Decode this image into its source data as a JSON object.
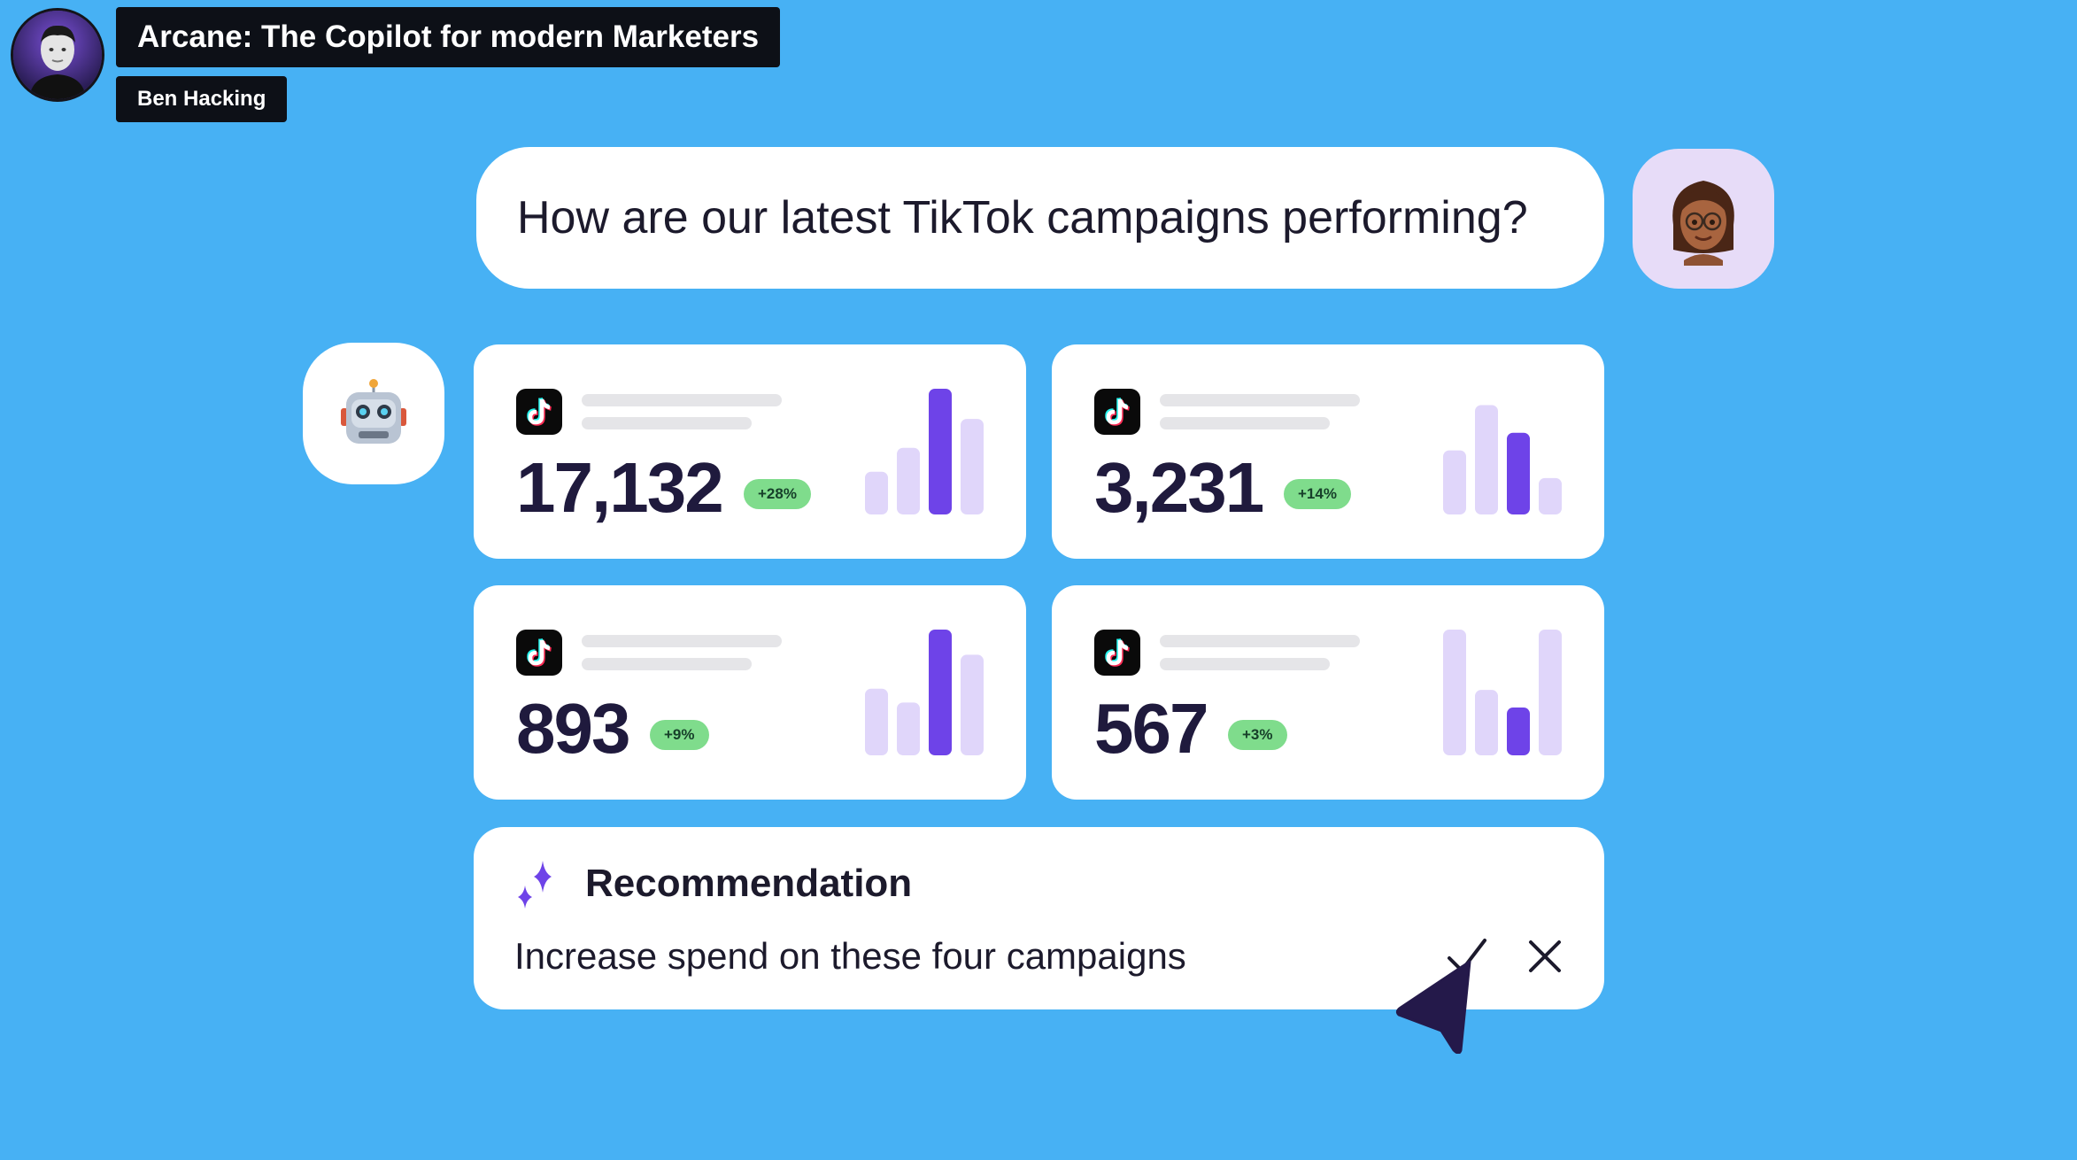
{
  "presenter": {
    "title": "Arcane: The Copilot for modern Marketers",
    "name": "Ben Hacking",
    "avatar_icon": "presenter-photo"
  },
  "chat": {
    "question": "How are our latest TikTok campaigns performing?",
    "user_avatar_icon": "woman-emoji-avatar",
    "bot_avatar_icon": "robot-emoji"
  },
  "cards": [
    {
      "metric": "17,132",
      "change": "+28%",
      "bars": [
        0.34,
        0.53,
        1.0,
        0.76
      ],
      "highlight": 2
    },
    {
      "metric": "3,231",
      "change": "+14%",
      "bars": [
        0.51,
        0.87,
        0.65,
        0.29
      ],
      "highlight": 2
    },
    {
      "metric": "893",
      "change": "+9%",
      "bars": [
        0.53,
        0.42,
        1.0,
        0.8
      ],
      "highlight": 2
    },
    {
      "metric": "567",
      "change": "+3%",
      "bars": [
        1.0,
        0.52,
        0.38,
        1.0
      ],
      "highlight": 2
    }
  ],
  "recommendation": {
    "title": "Recommendation",
    "text": "Increase spend on these four campaigns",
    "accept_icon": "checkmark-icon",
    "dismiss_icon": "close-icon"
  },
  "colors": {
    "background": "#47b1f4",
    "bar_highlight": "#6e43e8",
    "bar_muted": "#e0d6fa",
    "badge": "#7fdc8c",
    "accent": "#6e43e8"
  }
}
